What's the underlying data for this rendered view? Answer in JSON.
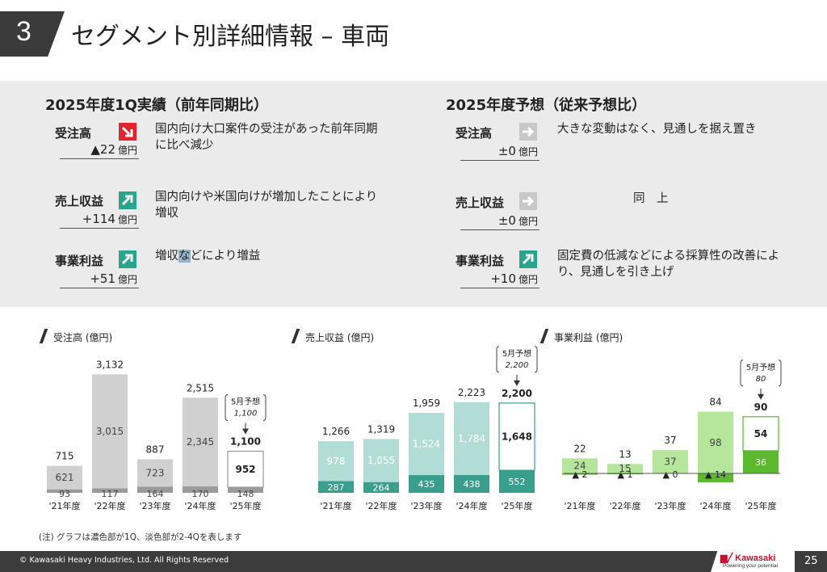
{
  "header": {
    "number": "3",
    "title": "セグメント別詳細情報 – 車両"
  },
  "left_section": {
    "title": "2025年度1Q実績（前年同期比）",
    "metrics": [
      {
        "label": "受注高",
        "value": "▲22",
        "unit": "億円",
        "arrow": "down",
        "color": "#e0252f",
        "desc": "国内向け大口案件の受注があった前年同期に比べ減少"
      },
      {
        "label": "売上収益",
        "value": "+114",
        "unit": "億円",
        "arrow": "up",
        "color": "#29a58e",
        "desc": "国内向けや米国向けが増加したことにより増収"
      },
      {
        "label": "事業利益",
        "value": "+51",
        "unit": "億円",
        "arrow": "up",
        "color": "#29a58e",
        "desc_pre": "増収",
        "desc_hl": "な",
        "desc_post": "どにより増益"
      }
    ]
  },
  "right_section": {
    "title": "2025年度予想（従来予想比）",
    "metrics": [
      {
        "label": "受注高",
        "value": "±0",
        "unit": "億円",
        "arrow": "flat",
        "color": "#c8c8c8",
        "desc": "大きな変動はなく、見通しを据え置き"
      },
      {
        "label": "売上収益",
        "value": "±0",
        "unit": "億円",
        "arrow": "flat",
        "color": "#c8c8c8",
        "desc": "同　上"
      },
      {
        "label": "事業利益",
        "value": "+10",
        "unit": "億円",
        "arrow": "up",
        "color": "#29a58e",
        "desc": "固定費の低減などによる採算性の改善により、見通しを引き上げ"
      }
    ]
  },
  "chart_data": [
    {
      "type": "bar",
      "title": "受注高 (億円)",
      "categories": [
        "'21年度",
        "'22年度",
        "'23年度",
        "'24年度",
        "'25年度"
      ],
      "series": [
        {
          "name": "1Q",
          "values": [
            93,
            117,
            164,
            170,
            148
          ]
        },
        {
          "name": "2-4Q",
          "values": [
            621,
            3015,
            723,
            2345,
            952
          ]
        }
      ],
      "totals": [
        715,
        3132,
        887,
        2515,
        1100
      ],
      "colors": {
        "dark": "#9a9a9a",
        "light": "#d0d0d0"
      },
      "forecast": {
        "label": "5月予想",
        "value": "1,100"
      }
    },
    {
      "type": "bar",
      "title": "売上収益 (億円)",
      "categories": [
        "'21年度",
        "'22年度",
        "'23年度",
        "'24年度",
        "'25年度"
      ],
      "series": [
        {
          "name": "1Q",
          "values": [
            287,
            264,
            435,
            438,
            552
          ]
        },
        {
          "name": "2-4Q",
          "values": [
            978,
            1055,
            1524,
            1784,
            1648
          ]
        }
      ],
      "totals": [
        1266,
        1319,
        1959,
        2223,
        2200
      ],
      "colors": {
        "dark": "#3a9e8c",
        "light": "#b2ddd6"
      },
      "forecast": {
        "label": "5月予想",
        "value": "2,200"
      }
    },
    {
      "type": "bar",
      "title": "事業利益 (億円)",
      "categories": [
        "'21年度",
        "'22年度",
        "'23年度",
        "'24年度",
        "'25年度"
      ],
      "series": [
        {
          "name": "1Q",
          "values": [
            -2,
            -1,
            0,
            -14,
            36
          ]
        },
        {
          "name": "2-4Q",
          "values": [
            24,
            15,
            37,
            98,
            54
          ]
        }
      ],
      "q1_labels": [
        "▲ 2",
        "▲ 1",
        "▲ 0",
        "▲ 14",
        "36"
      ],
      "totals": [
        22,
        13,
        37,
        84,
        90
      ],
      "colors": {
        "dark": "#5cb82e",
        "light": "#b6e59c"
      },
      "forecast": {
        "label": "5月予想",
        "value": "80"
      }
    }
  ],
  "note": "(注) グラフは濃色部が1Q、淡色部が2-4Qを表します",
  "footer": {
    "copyright": "© Kawasaki Heavy Industries, Ltd. All Rights Reserved",
    "logo": "Kawasaki",
    "tagline": "Powering your potential",
    "page": "25"
  }
}
